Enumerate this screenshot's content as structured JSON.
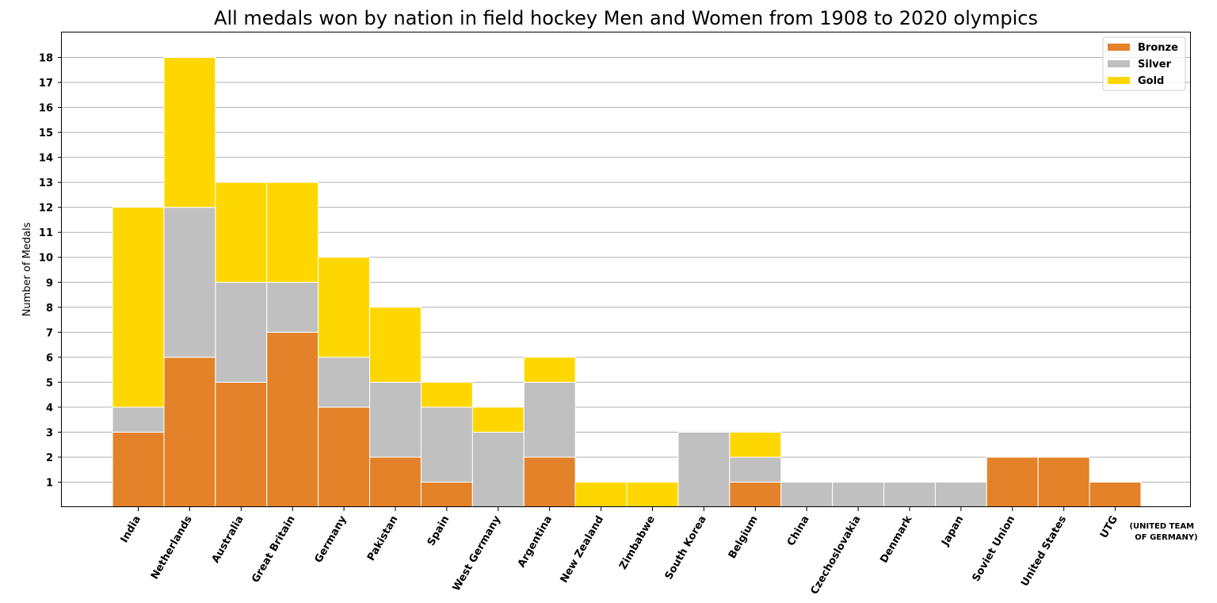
{
  "chart_data": {
    "type": "bar",
    "stacked": true,
    "title": "All medals won by nation in field hockey Men and Women from 1908 to 2020 olympics",
    "xlabel": "",
    "ylabel": "Number of Medals",
    "ylim": [
      0,
      19
    ],
    "yticks": [
      1,
      2,
      3,
      4,
      5,
      6,
      7,
      8,
      9,
      10,
      11,
      12,
      13,
      14,
      15,
      16,
      17,
      18
    ],
    "grid": "horizontal",
    "legend_position": "top-right",
    "categories": [
      "India",
      "Netherlands",
      "Australia",
      "Great Britain",
      "Germany",
      "Pakistan",
      "Spain",
      "West Germany",
      "Argentina",
      "New Zealand",
      "Zimbabwe",
      "South Korea",
      "Belgium",
      "China",
      "Czechoslovakia",
      "Denmark",
      "Japan",
      "Soviet Union",
      "United States",
      "UTG"
    ],
    "series": [
      {
        "name": "Bronze",
        "color": "#e38229",
        "values": [
          3,
          6,
          5,
          7,
          4,
          2,
          1,
          0,
          2,
          0,
          0,
          0,
          1,
          0,
          0,
          0,
          0,
          2,
          2,
          1
        ]
      },
      {
        "name": "Silver",
        "color": "#c0c0c0",
        "values": [
          1,
          6,
          4,
          2,
          2,
          3,
          3,
          3,
          3,
          0,
          0,
          3,
          1,
          1,
          1,
          1,
          1,
          0,
          0,
          0
        ]
      },
      {
        "name": "Gold",
        "color": "#ffd700",
        "values": [
          8,
          6,
          4,
          4,
          4,
          3,
          1,
          1,
          1,
          1,
          1,
          0,
          1,
          0,
          0,
          0,
          0,
          0,
          0,
          0
        ]
      }
    ],
    "annotation": [
      "(UNITED TEAM",
      "OF GERMANY)"
    ]
  }
}
